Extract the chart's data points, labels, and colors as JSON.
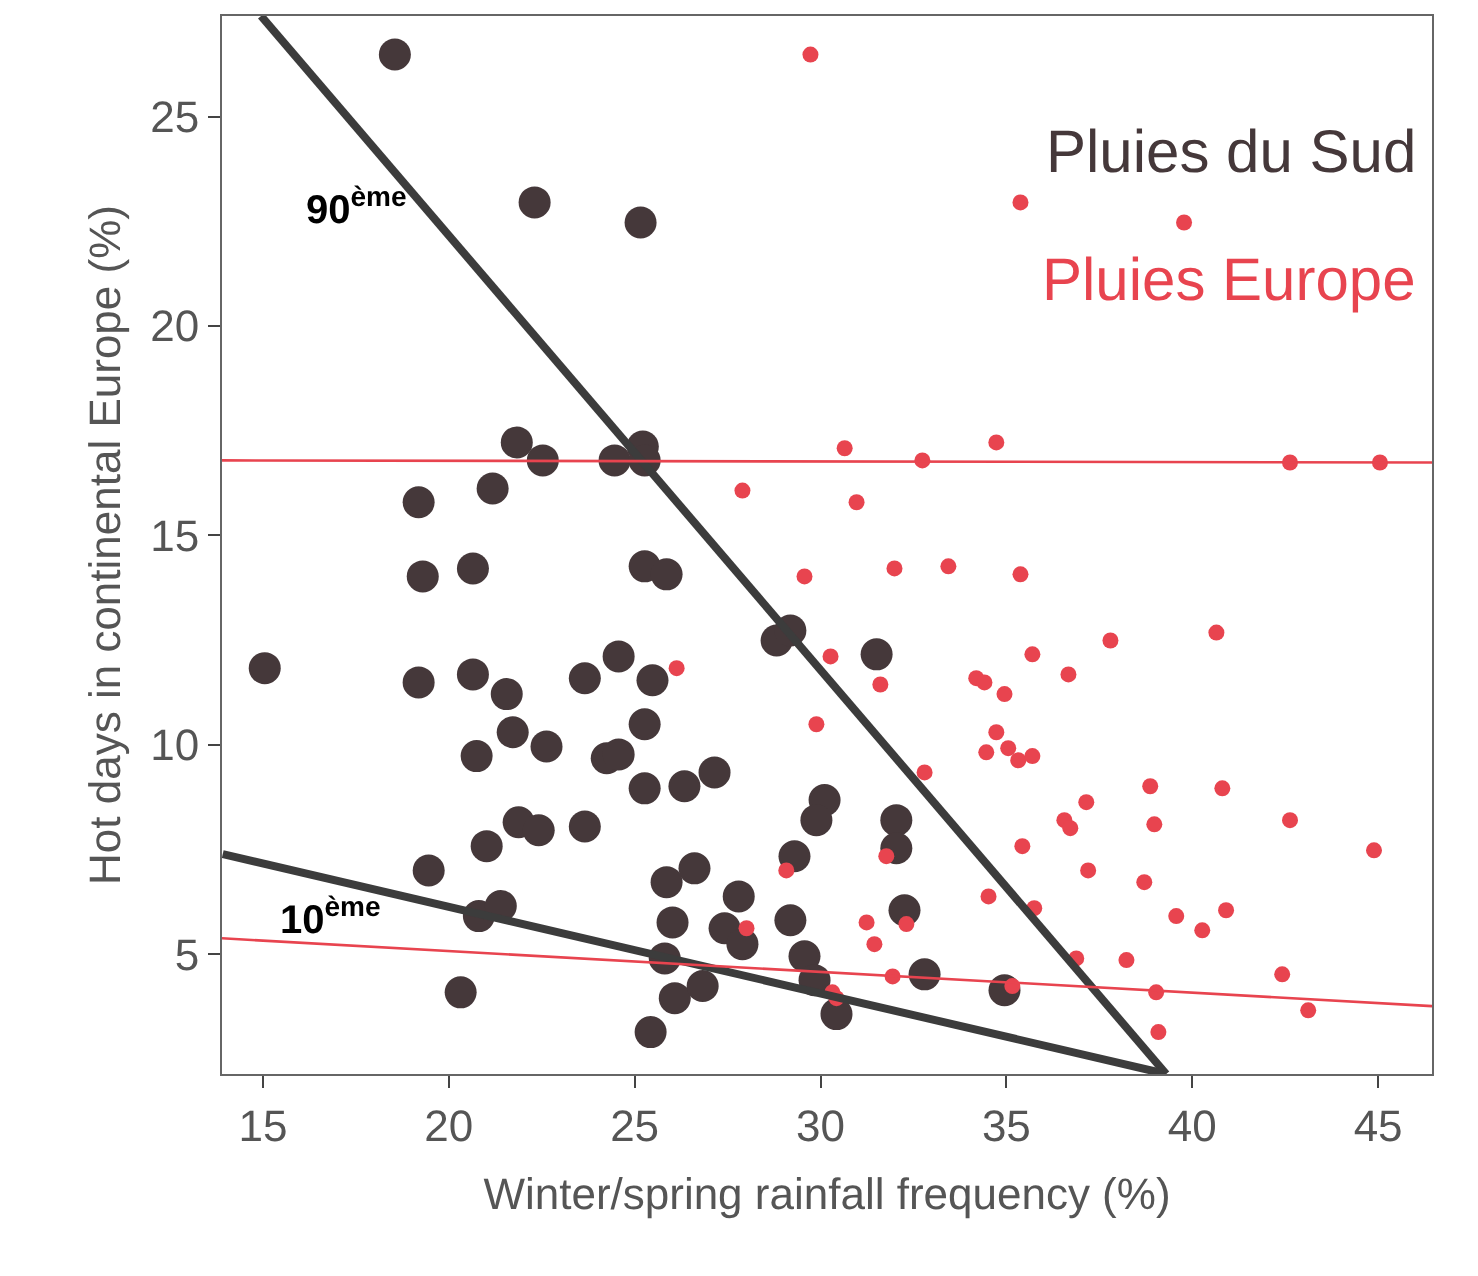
{
  "chart_data": {
    "type": "scatter",
    "xlabel": "Winter/spring rainfall frequency (%)",
    "ylabel": "Hot days in continental Europe (%)",
    "xlim": [
      13.9,
      46.45
    ],
    "xticks": [
      15,
      20,
      25,
      30,
      35,
      40,
      45
    ],
    "ylim": [
      2.14,
      27.4
    ],
    "yticks": [
      5,
      10,
      15,
      20,
      25
    ],
    "legend": false,
    "series": [
      {
        "name": "Pluies du Sud",
        "marker": "circle",
        "color": "#45383a",
        "x": [
          18.55,
          22.31,
          25.16,
          21.83,
          22.53,
          24.46,
          25.22,
          25.27,
          19.19,
          21.18,
          19.3,
          20.65,
          25.27,
          25.86,
          15.05,
          19.19,
          20.65,
          21.56,
          21.72,
          22.63,
          20.75,
          23.66,
          24.57,
          25.48,
          25.27,
          24.25,
          24.57,
          25.27,
          26.34,
          27.15,
          28.82,
          29.19,
          31.51,
          21.88,
          22.42,
          23.66,
          21.02,
          19.46,
          20.81,
          21.4,
          20.32,
          25.86,
          26.61,
          27.8,
          27.42,
          27.9,
          26.02,
          25.81,
          26.08,
          26.83,
          25.43,
          29.19,
          29.3,
          29.57,
          29.84,
          30.43,
          30.11,
          29.89,
          32.04,
          32.04,
          32.26,
          32.8,
          34.95
        ],
        "values": [
          26.48,
          22.95,
          22.47,
          17.22,
          16.79,
          16.79,
          17.12,
          16.79,
          15.79,
          16.12,
          14.02,
          14.21,
          14.26,
          14.07,
          11.83,
          11.49,
          11.68,
          11.21,
          10.3,
          9.96,
          9.73,
          11.59,
          12.11,
          11.54,
          10.49,
          9.68,
          9.77,
          8.96,
          9.01,
          9.34,
          12.49,
          12.73,
          12.16,
          8.15,
          7.96,
          8.05,
          7.58,
          7.0,
          5.91,
          6.15,
          4.09,
          6.72,
          7.05,
          6.38,
          5.62,
          5.24,
          5.76,
          4.9,
          3.95,
          4.24,
          3.14,
          5.81,
          7.34,
          4.95,
          4.38,
          3.57,
          8.68,
          8.2,
          8.2,
          7.53,
          6.05,
          4.52,
          4.14
        ]
      },
      {
        "name": "Pluies Europe",
        "marker": "circle",
        "color": "#e8444f",
        "x": [
          29.73,
          35.38,
          39.78,
          27.9,
          30.65,
          30.97,
          32.74,
          34.73,
          42.63,
          45.05,
          29.57,
          31.99,
          33.44,
          35.38,
          30.27,
          31.61,
          34.19,
          34.41,
          34.95,
          35.7,
          36.67,
          37.8,
          40.65,
          26.13,
          29.89,
          34.73,
          34.46,
          35.05,
          35.32,
          35.7,
          32.8,
          38.87,
          40.81,
          37.15,
          36.56,
          36.72,
          38.98,
          42.63,
          44.89,
          35.43,
          31.77,
          37.2,
          38.71,
          34.52,
          35.75,
          39.57,
          40.27,
          40.91,
          31.24,
          32.31,
          31.45,
          36.88,
          38.23,
          42.42,
          31.94,
          35.16,
          39.03,
          43.12,
          39.09,
          30.32,
          30.43,
          28.01,
          29.08
        ],
        "values": [
          26.48,
          22.95,
          22.47,
          16.07,
          17.08,
          15.79,
          16.79,
          17.22,
          16.74,
          16.74,
          14.02,
          14.21,
          14.26,
          14.07,
          12.11,
          11.44,
          11.59,
          11.49,
          11.21,
          12.16,
          11.68,
          12.49,
          12.68,
          11.83,
          10.49,
          10.3,
          9.82,
          9.92,
          9.63,
          9.73,
          9.34,
          9.01,
          8.96,
          8.63,
          8.2,
          8.01,
          8.1,
          8.2,
          7.48,
          7.58,
          7.34,
          7.0,
          6.72,
          6.38,
          6.1,
          5.91,
          5.57,
          6.05,
          5.76,
          5.72,
          5.24,
          4.9,
          4.86,
          4.52,
          4.47,
          4.24,
          4.09,
          3.66,
          3.14,
          4.09,
          3.95,
          5.62,
          7.0
        ]
      },
      {
        "type": "line",
        "marker": "none",
        "line_style": "solid",
        "color": "#3c3c3c",
        "x": [
          14.95,
          39.3
        ],
        "values": [
          27.4,
          2.14
        ]
      },
      {
        "type": "line",
        "marker": "none",
        "line_style": "solid",
        "color": "#3c3c3c",
        "x": [
          13.92,
          39.3
        ],
        "values": [
          7.39,
          2.14
        ]
      },
      {
        "type": "line",
        "marker": "none",
        "line_style": "solid",
        "color": "#e8444f",
        "x": [
          13.9,
          46.45
        ],
        "values": [
          16.79,
          16.74
        ]
      },
      {
        "type": "line",
        "marker": "none",
        "line_style": "solid",
        "color": "#e8444f",
        "x": [
          13.9,
          46.45
        ],
        "values": [
          5.38,
          3.76
        ]
      }
    ],
    "annotations": [
      "90$^{ème}$",
      "10$^{ème}$"
    ]
  }
}
